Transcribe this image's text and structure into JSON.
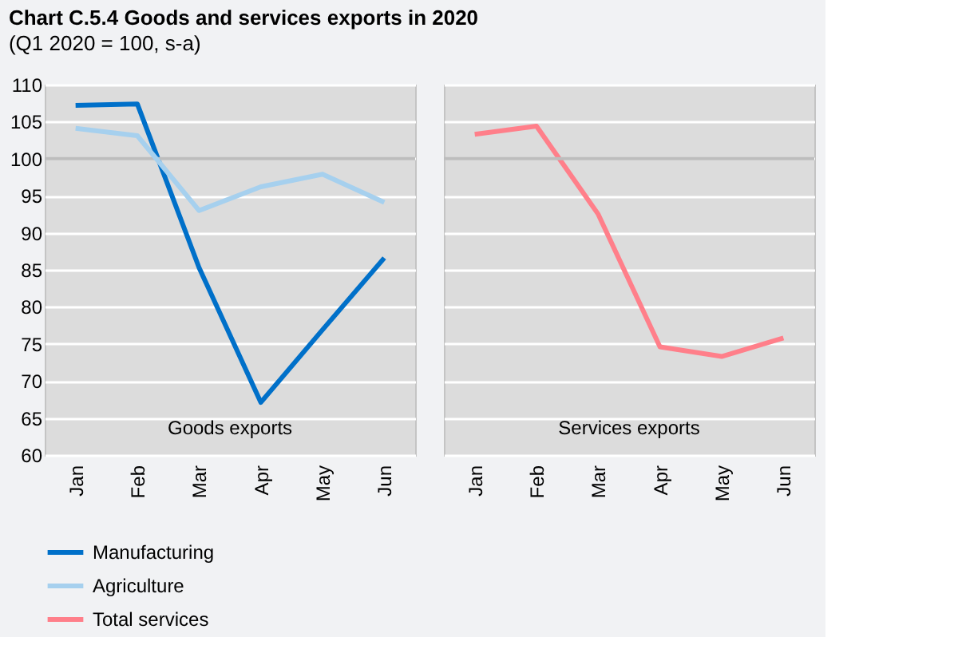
{
  "chart_data": [
    {
      "type": "line",
      "title": "Chart C.5.4 Goods and services exports in 2020",
      "subtitle": "(Q1 2020 = 100, s-a)",
      "categories": [
        "Jan",
        "Feb",
        "Mar",
        "Apr",
        "May",
        "Jun"
      ],
      "series": [
        {
          "name": "Manufacturing",
          "color": "#0070c9",
          "values": [
            107.2,
            107.4,
            85.3,
            67.1,
            76.9,
            86.6
          ]
        },
        {
          "name": "Agriculture",
          "color": "#a6d0ee",
          "values": [
            104.1,
            103.1,
            93.0,
            96.2,
            97.9,
            94.1
          ]
        }
      ],
      "ylim": [
        60,
        110
      ],
      "yticks": [
        60,
        65,
        70,
        75,
        80,
        85,
        90,
        95,
        100,
        105,
        110
      ],
      "grid": "y",
      "legend": "bottom",
      "marker": "none",
      "line_style": "solid",
      "ref_lines": [
        {
          "axis": "y",
          "value": 100,
          "color": "#bdbdbd"
        }
      ],
      "annotations": [
        "Goods exports"
      ]
    },
    {
      "type": "line",
      "categories": [
        "Jan",
        "Feb",
        "Mar",
        "Apr",
        "May",
        "Jun"
      ],
      "series": [
        {
          "name": "Total services",
          "color": "#ff7f8a",
          "values": [
            103.3,
            104.4,
            92.5,
            74.6,
            73.3,
            75.8
          ]
        }
      ],
      "ylim": [
        60,
        110
      ],
      "yticks": [
        60,
        65,
        70,
        75,
        80,
        85,
        90,
        95,
        100,
        105,
        110
      ],
      "grid": "y",
      "legend": "bottom",
      "marker": "none",
      "line_style": "solid",
      "tick_labels": "x",
      "ref_lines": [
        {
          "axis": "y",
          "value": 100,
          "color": "#bdbdbd"
        }
      ],
      "annotations": [
        "Services exports"
      ]
    }
  ]
}
